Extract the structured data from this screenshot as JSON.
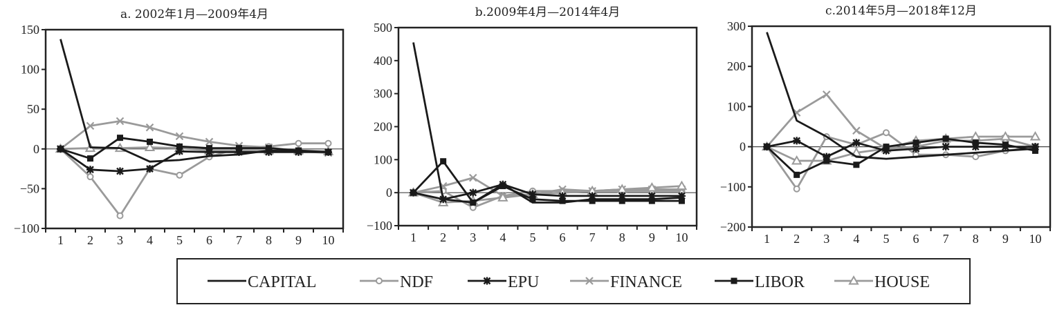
{
  "chart_data": [
    {
      "type": "line",
      "title": "a. 2002年1月—2009年4月",
      "categories": [
        "1",
        "2",
        "3",
        "4",
        "5",
        "6",
        "7",
        "8",
        "9",
        "10"
      ],
      "ylim": [
        -100,
        150
      ],
      "yticks": [
        150,
        100,
        50,
        0,
        -50,
        -100
      ],
      "yticklabels": [
        "150",
        "100",
        "50",
        "0",
        "−50",
        "−100"
      ],
      "series": [
        {
          "name": "CAPITAL",
          "values": [
            138,
            2,
            1,
            -16,
            -14,
            -9,
            -7,
            -2,
            -3,
            -4
          ]
        },
        {
          "name": "NDF",
          "values": [
            0,
            -35,
            -84,
            -25,
            -33,
            -10,
            1,
            3,
            7,
            7
          ]
        },
        {
          "name": "EPU",
          "values": [
            0,
            -26,
            -28,
            -25,
            -3,
            -4,
            -4,
            -4,
            -4,
            -4
          ]
        },
        {
          "name": "FINANCE",
          "values": [
            0,
            29,
            35,
            27,
            16,
            9,
            4,
            2,
            -3,
            -5
          ]
        },
        {
          "name": "LIBOR",
          "values": [
            0,
            -12,
            14,
            9,
            3,
            1,
            1,
            1,
            -2,
            -4
          ]
        },
        {
          "name": "HOUSE",
          "values": [
            0,
            1,
            1,
            2,
            1,
            -2,
            -2,
            -2,
            -2,
            -3
          ]
        }
      ]
    },
    {
      "type": "line",
      "title": "b.2009年4月—2014年4月",
      "categories": [
        "1",
        "2",
        "3",
        "4",
        "5",
        "6",
        "7",
        "8",
        "9",
        "10"
      ],
      "ylim": [
        -100,
        500
      ],
      "yticks": [
        500,
        400,
        300,
        200,
        100,
        0,
        -100
      ],
      "yticklabels": [
        "500",
        "400",
        "300",
        "200",
        "100",
        "0",
        "−100"
      ],
      "series": [
        {
          "name": "CAPITAL",
          "values": [
            455,
            -20,
            -30,
            25,
            -30,
            -30,
            -20,
            -20,
            -20,
            -15
          ]
        },
        {
          "name": "NDF",
          "values": [
            0,
            5,
            -45,
            -10,
            5,
            5,
            5,
            5,
            5,
            5
          ]
        },
        {
          "name": "EPU",
          "values": [
            0,
            -20,
            0,
            25,
            -5,
            -10,
            -10,
            -10,
            -10,
            -10
          ]
        },
        {
          "name": "FINANCE",
          "values": [
            0,
            20,
            45,
            -10,
            -5,
            10,
            5,
            10,
            10,
            10
          ]
        },
        {
          "name": "LIBOR",
          "values": [
            0,
            95,
            -30,
            20,
            -20,
            -25,
            -25,
            -25,
            -25,
            -25
          ]
        },
        {
          "name": "HOUSE",
          "values": [
            0,
            -30,
            -25,
            -15,
            -5,
            0,
            5,
            10,
            15,
            20
          ]
        }
      ]
    },
    {
      "type": "line",
      "title": "c.2014年5月—2018年12月",
      "categories": [
        "1",
        "2",
        "3",
        "4",
        "5",
        "6",
        "7",
        "8",
        "9",
        "10"
      ],
      "ylim": [
        -200,
        300
      ],
      "yticks": [
        300,
        200,
        100,
        0,
        -100,
        -200
      ],
      "yticklabels": [
        "300",
        "200",
        "100",
        "0",
        "−100",
        "−200"
      ],
      "series": [
        {
          "name": "CAPITAL",
          "values": [
            285,
            65,
            25,
            -25,
            -30,
            -25,
            -20,
            -15,
            -10,
            -5
          ]
        },
        {
          "name": "NDF",
          "values": [
            0,
            -105,
            25,
            5,
            35,
            -20,
            -20,
            -25,
            -10,
            0
          ]
        },
        {
          "name": "EPU",
          "values": [
            0,
            15,
            -25,
            10,
            -10,
            -5,
            0,
            0,
            0,
            0
          ]
        },
        {
          "name": "FINANCE",
          "values": [
            0,
            85,
            130,
            40,
            -5,
            0,
            15,
            15,
            20,
            0
          ]
        },
        {
          "name": "LIBOR",
          "values": [
            0,
            -70,
            -35,
            -45,
            0,
            10,
            20,
            10,
            5,
            -10
          ]
        },
        {
          "name": "HOUSE",
          "values": [
            0,
            -35,
            -35,
            -15,
            -5,
            15,
            20,
            25,
            25,
            25
          ]
        }
      ]
    }
  ],
  "legend": [
    {
      "name": "CAPITAL",
      "color": "#1a1a1a",
      "marker": "none"
    },
    {
      "name": "NDF",
      "color": "#9a9a9a",
      "marker": "circle"
    },
    {
      "name": "EPU",
      "color": "#1a1a1a",
      "marker": "star"
    },
    {
      "name": "FINANCE",
      "color": "#9a9a9a",
      "marker": "cross"
    },
    {
      "name": "LIBOR",
      "color": "#1a1a1a",
      "marker": "square"
    },
    {
      "name": "HOUSE",
      "color": "#9a9a9a",
      "marker": "triangle"
    }
  ],
  "colors": {
    "dark": "#1a1a1a",
    "light": "#9a9a9a"
  }
}
